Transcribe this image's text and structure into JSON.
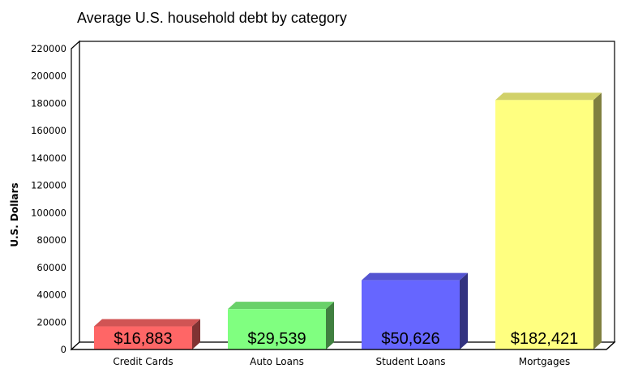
{
  "chart_data": {
    "type": "bar",
    "style": "3d",
    "title": "Average U.S. household debt by category",
    "xlabel": "",
    "ylabel": "U.S. Dollars",
    "ylim": [
      0,
      220000
    ],
    "yticks": [
      0,
      20000,
      40000,
      60000,
      80000,
      100000,
      120000,
      140000,
      160000,
      180000,
      200000,
      220000
    ],
    "grid": false,
    "legend": "none",
    "categories": [
      "Credit Cards",
      "Auto Loans",
      "Student Loans",
      "Mortgages"
    ],
    "values": [
      16883,
      29539,
      50626,
      182421
    ],
    "data_labels": [
      "$16,883",
      "$29,539",
      "$50,626",
      "$182,421"
    ],
    "colors": [
      "#ff6666",
      "#80ff80",
      "#6666ff",
      "#ffff80"
    ]
  }
}
